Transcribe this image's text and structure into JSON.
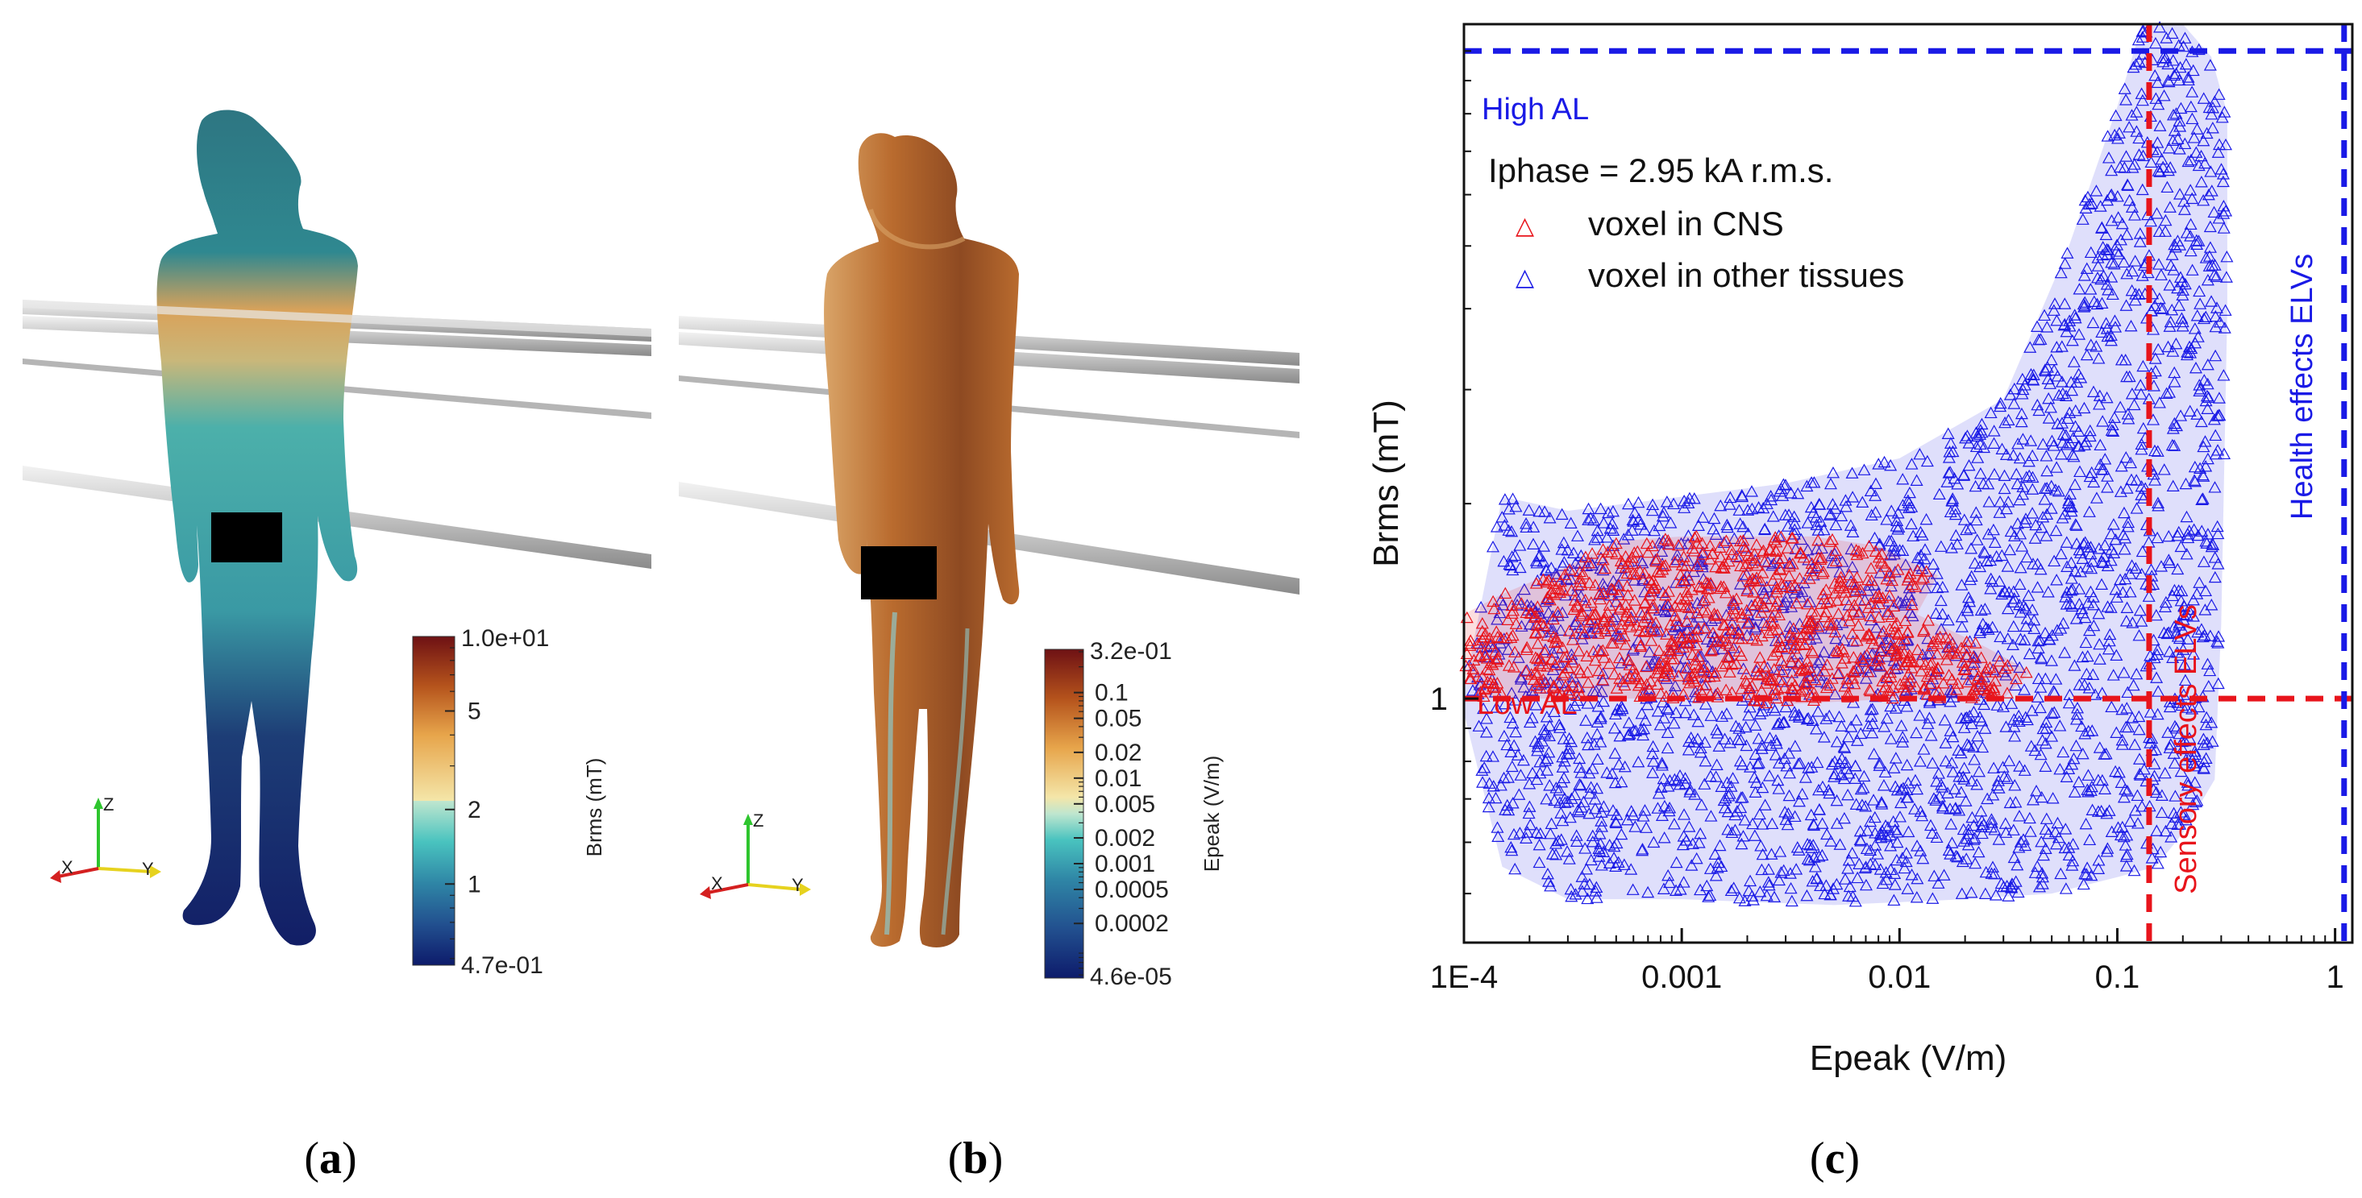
{
  "panels": {
    "a": {
      "caption_paren_open": "(",
      "caption_letter": "a",
      "caption_paren_close": ")",
      "colorbar": {
        "label": "Brms (mT)",
        "max_label": "1.0e+01",
        "min_label": "4.7e-01",
        "ticks": [
          {
            "label": "5",
            "value": 5
          },
          {
            "label": "2",
            "value": 2
          },
          {
            "label": "1",
            "value": 1
          }
        ],
        "colors": [
          "#0d1b6b",
          "#22508f",
          "#2f86a6",
          "#49c3bf",
          "#bfe6cf",
          "#f4e6a9",
          "#e7a54b",
          "#b5531c",
          "#6e1114"
        ]
      },
      "axes": {
        "z": "Z",
        "x": "X",
        "y": "Y"
      },
      "figure_colors": {
        "top": "#2e7682",
        "chest": "#d9a25a",
        "torso": "#4cb0aa",
        "legs": "#1d3d76",
        "feet": "#121e66"
      }
    },
    "b": {
      "caption_paren_open": "(",
      "caption_letter": "b",
      "caption_paren_close": ")",
      "colorbar": {
        "label": "Epeak (V/m)",
        "max_label": "3.2e-01",
        "min_label": "4.6e-05",
        "ticks": [
          {
            "label": "0.1",
            "value": 0.1
          },
          {
            "label": "0.05",
            "value": 0.05
          },
          {
            "label": "0.02",
            "value": 0.02
          },
          {
            "label": "0.01",
            "value": 0.01
          },
          {
            "label": "0.005",
            "value": 0.005
          },
          {
            "label": "0.002",
            "value": 0.002
          },
          {
            "label": "0.001",
            "value": 0.001
          },
          {
            "label": "0.0005",
            "value": 0.0005
          },
          {
            "label": "0.0002",
            "value": 0.0002
          }
        ],
        "colors": [
          "#0d1b6b",
          "#22508f",
          "#2f86a6",
          "#49c3bf",
          "#bfe6cf",
          "#f4e6a9",
          "#e7a54b",
          "#b5531c",
          "#6e1114"
        ]
      },
      "axes": {
        "z": "Z",
        "x": "X",
        "y": "Y"
      },
      "figure_colors": {
        "body": "#b96b2e",
        "dark": "#8e4a22",
        "light": "#d9a468"
      }
    },
    "c": {
      "caption_paren_open": "(",
      "caption_letter": "c",
      "caption_paren_close": ")"
    }
  },
  "chart_data": {
    "type": "scatter",
    "xscale": "log",
    "yscale": "log",
    "xlabel": "Epeak (V/m)",
    "ylabel": "Brms (mT)",
    "xlim": [
      0.0001,
      1.2
    ],
    "ylim": [
      0.42,
      11
    ],
    "xticks": [
      {
        "label": "1E-4",
        "value": 0.0001
      },
      {
        "label": "0.001",
        "value": 0.001
      },
      {
        "label": "0.01",
        "value": 0.01
      },
      {
        "label": "0.1",
        "value": 0.1
      },
      {
        "label": "1",
        "value": 1
      }
    ],
    "yticks": [
      {
        "label": "1",
        "value": 1
      }
    ],
    "annotation": "Iphase = 2.95 kA r.m.s.",
    "legend": {
      "placement": "top-left",
      "entries": [
        {
          "marker": "△",
          "label": "voxel in CNS",
          "color": "#e8141b"
        },
        {
          "marker": "△",
          "label": "voxel in other tissues",
          "color": "#1a1ae6"
        }
      ]
    },
    "reference_lines": [
      {
        "orientation": "horizontal",
        "value": 10,
        "label": "High AL",
        "color": "#1a1ae6",
        "label_placement": "left"
      },
      {
        "orientation": "horizontal",
        "value": 1,
        "label": "Low AL",
        "color": "#e8141b",
        "label_placement": "left-below"
      },
      {
        "orientation": "vertical",
        "value": 0.14,
        "label": "Sensory effects ELVs",
        "color": "#e8141b"
      },
      {
        "orientation": "vertical",
        "value": 1.1,
        "label": "Health effects ELVs",
        "color": "#1a1ae6"
      }
    ],
    "series": [
      {
        "name": "voxel in other tissues",
        "color": "#1a1ae6",
        "envelope": {
          "upper": [
            [
              0.0001,
              1.03
            ],
            [
              0.00015,
              2.05
            ],
            [
              0.0003,
              1.95
            ],
            [
              0.001,
              2.05
            ],
            [
              0.003,
              2.15
            ],
            [
              0.01,
              2.35
            ],
            [
              0.03,
              2.9
            ],
            [
              0.06,
              5.0
            ],
            [
              0.1,
              8.2
            ],
            [
              0.13,
              11.0
            ],
            [
              0.2,
              11.0
            ],
            [
              0.27,
              9.8
            ],
            [
              0.32,
              8.0
            ],
            [
              0.32,
              4.0
            ],
            [
              0.3,
              1.3
            ]
          ],
          "lower": [
            [
              0.3,
              1.3
            ],
            [
              0.28,
              0.75
            ],
            [
              0.2,
              0.62
            ],
            [
              0.15,
              0.55
            ],
            [
              0.1,
              0.53
            ],
            [
              0.05,
              0.5
            ],
            [
              0.02,
              0.49
            ],
            [
              0.005,
              0.48
            ],
            [
              0.001,
              0.49
            ],
            [
              0.0003,
              0.49
            ],
            [
              0.00015,
              0.55
            ],
            [
              0.0001,
              0.95
            ]
          ]
        }
      },
      {
        "name": "voxel in CNS",
        "color": "#e8141b",
        "envelope": {
          "upper": [
            [
              0.0001,
              1.35
            ],
            [
              0.00015,
              1.45
            ],
            [
              0.0003,
              1.6
            ],
            [
              0.0005,
              1.75
            ],
            [
              0.001,
              1.78
            ],
            [
              0.004,
              1.78
            ],
            [
              0.008,
              1.72
            ],
            [
              0.015,
              1.55
            ],
            [
              0.012,
              1.35
            ],
            [
              0.025,
              1.2
            ],
            [
              0.04,
              1.1
            ]
          ],
          "lower": [
            [
              0.04,
              1.1
            ],
            [
              0.03,
              1.0
            ],
            [
              0.01,
              1.0
            ],
            [
              0.003,
              0.98
            ],
            [
              0.001,
              1.0
            ],
            [
              0.0003,
              1.0
            ],
            [
              0.00012,
              1.0
            ],
            [
              0.0001,
              1.1
            ]
          ]
        }
      }
    ]
  }
}
